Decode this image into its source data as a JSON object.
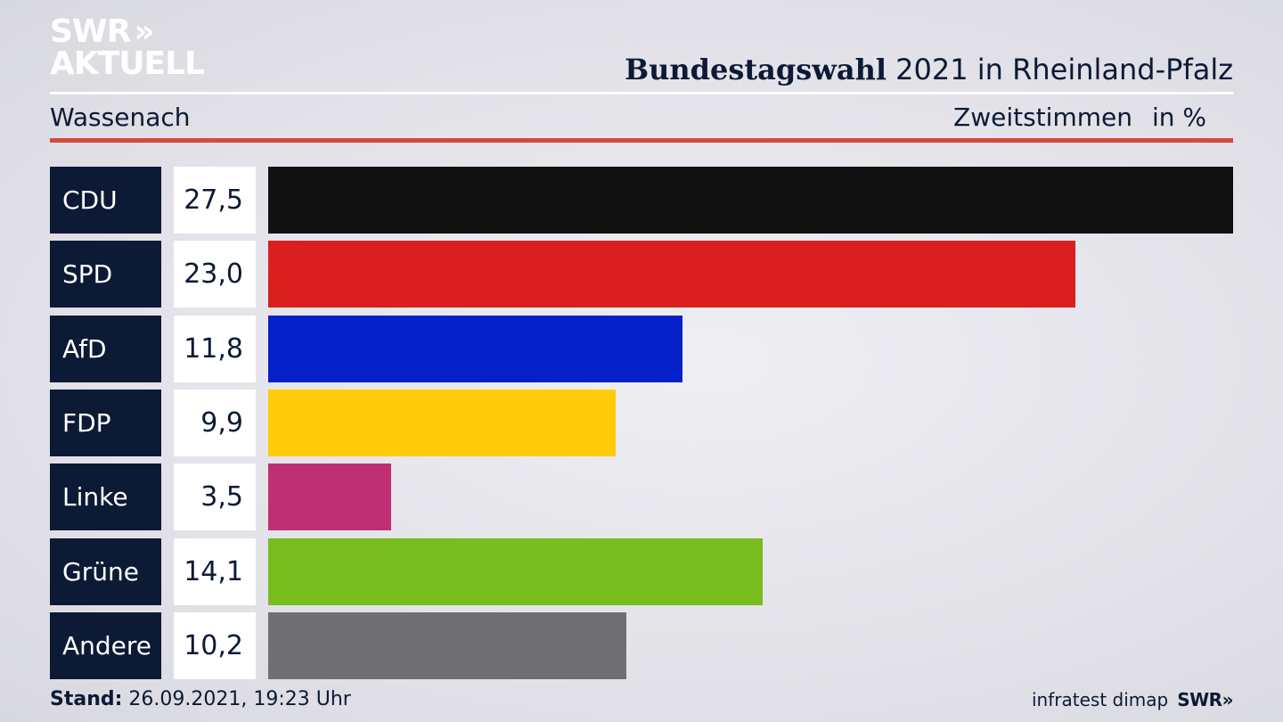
{
  "brand": {
    "line1": "SWR",
    "line2": "AKTUELL",
    "chevrons": "»"
  },
  "header": {
    "title_bold": "Bundestagswahl",
    "title_rest": " 2021 in Rheinland-Pfalz",
    "region": "Wassenach",
    "subtitle": "Zweitstimmen",
    "unit": "in %"
  },
  "chart_data": {
    "type": "bar",
    "orientation": "horizontal",
    "title": "Bundestagswahl 2021 in Rheinland-Pfalz",
    "categories": [
      "CDU",
      "SPD",
      "AfD",
      "FDP",
      "Linke",
      "Grüne",
      "Andere"
    ],
    "value_labels": [
      "27,5",
      "23,0",
      "11,8",
      "9,9",
      "3,5",
      "14,1",
      "10,2"
    ],
    "values": [
      27.5,
      23.0,
      11.8,
      9.9,
      3.5,
      14.1,
      10.2
    ],
    "colors": [
      "#121212",
      "#d9201f",
      "#0420c8",
      "#ffcc0a",
      "#bf2f73",
      "#78bc1e",
      "#707072"
    ],
    "xlim": [
      0,
      27.5
    ]
  },
  "footer": {
    "stand_label": "Stand:",
    "stand_value": " 26.09.2021, 19:23 Uhr",
    "source": "infratest dimap",
    "source_brand": "SWR»"
  }
}
